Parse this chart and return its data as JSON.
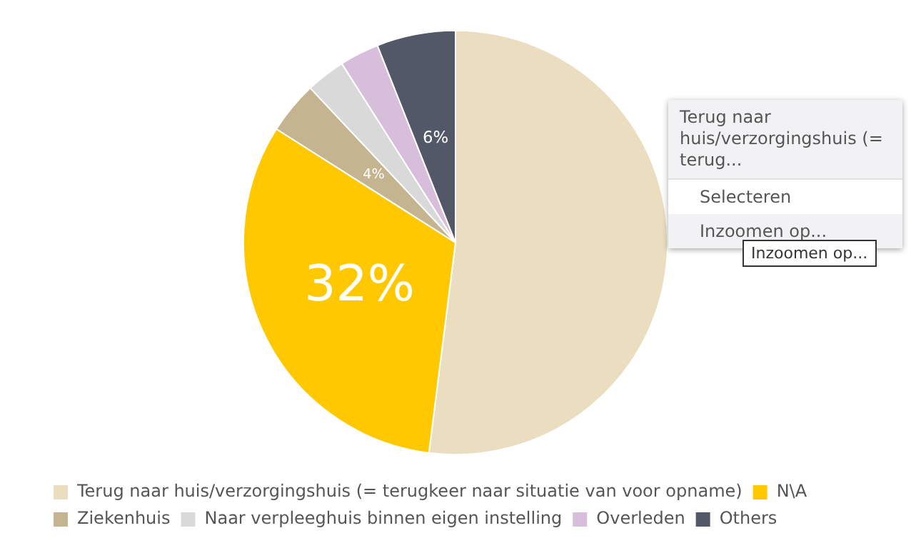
{
  "chart_data": {
    "type": "pie",
    "categories": [
      "Terug naar huis/verzorgingshuis (= terugkeer naar situatie van voor opname)",
      "N\\A",
      "Ziekenhuis",
      "Naar verpleeghuis binnen eigen instelling",
      "Overleden",
      "Others"
    ],
    "values": [
      52,
      32,
      4,
      3,
      3,
      6
    ],
    "colors": [
      "#eaddc0",
      "#ffc800",
      "#c4b48f",
      "#d9d9d9",
      "#d7bfdb",
      "#535869"
    ],
    "value_labels": [
      null,
      "32%",
      "4%",
      null,
      null,
      "6%"
    ],
    "legend": "bottom",
    "annotations": [
      "Terug naar huis/verzorgingshuis (= terug...",
      "Selecteren",
      "Inzoomen op...",
      "Inzoomen op..."
    ]
  }
}
